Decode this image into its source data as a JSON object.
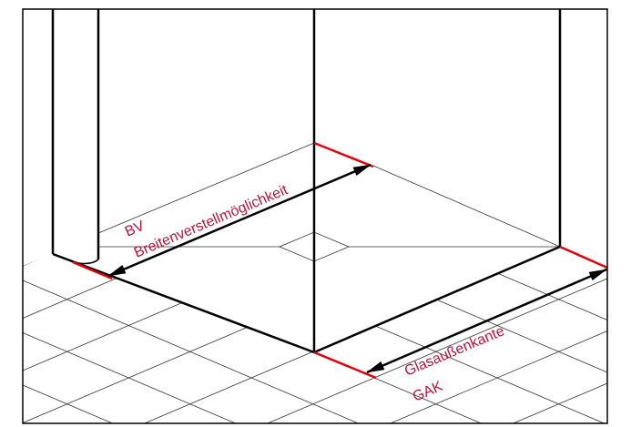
{
  "labels": {
    "bv_abbr": "BV",
    "bv_full": "Breitenverstellmöglichkeit",
    "gak_full": "Glasaußenkante",
    "gak_abbr": "GAK"
  },
  "colors": {
    "label_text": "#b4163c",
    "marker_red": "#e8000b",
    "line": "#000000",
    "tile_line": "#333333"
  }
}
